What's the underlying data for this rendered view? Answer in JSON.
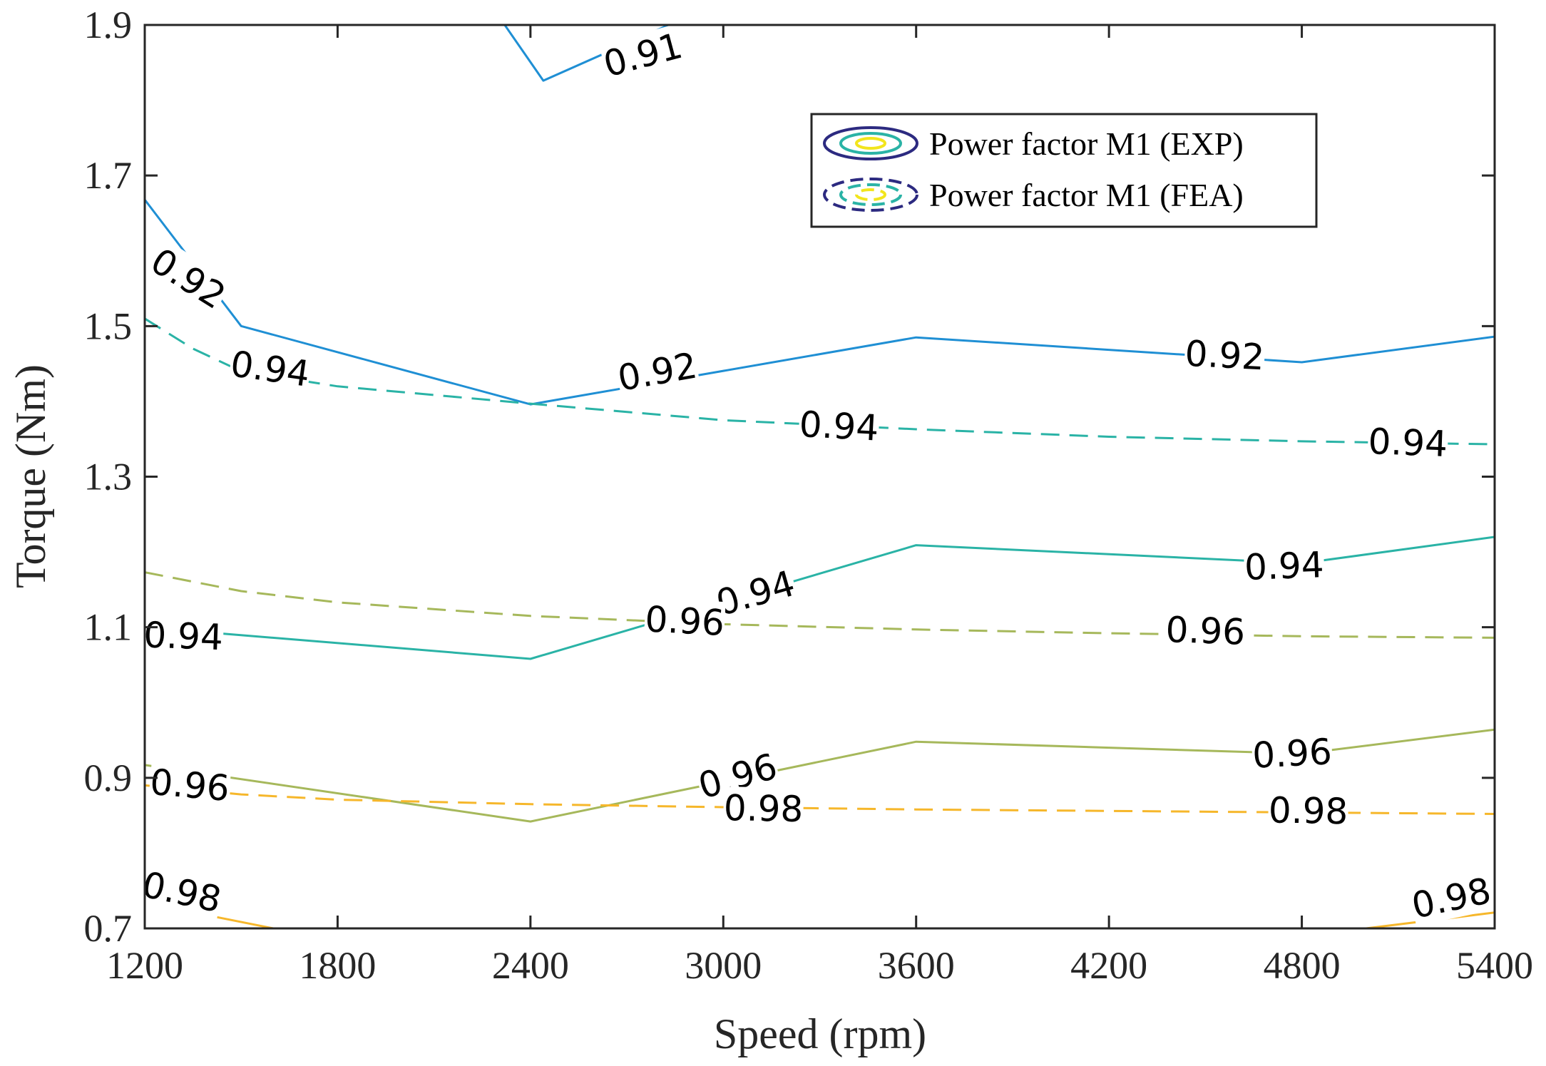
{
  "chart_data": {
    "type": "contour",
    "xlabel": "Speed (rpm)",
    "ylabel": "Torque (Nm)",
    "xlim": [
      1200,
      5400
    ],
    "ylim": [
      0.7,
      1.9
    ],
    "xticks": [
      "1200",
      "1800",
      "2400",
      "3000",
      "3600",
      "4200",
      "4800",
      "5400"
    ],
    "yticks": [
      "0.7",
      "0.9",
      "1.1",
      "1.3",
      "1.5",
      "1.7",
      "1.9"
    ],
    "grid": false,
    "legend": {
      "position": "top-right",
      "entries": [
        "Power factor M1 (EXP)",
        "Power factor M1 (FEA)"
      ]
    },
    "colors": {
      "0.91": "#1f8fd4",
      "0.92": "#1f8fd4",
      "0.94": "#2ab3a6",
      "0.96": "#a6b85b",
      "0.98": "#f6b72b",
      "legend_outer": "#2c2a80",
      "legend_mid": "#2ab3a6",
      "legend_inner": "#f2e51d"
    },
    "series": [
      {
        "name": "Power factor M1 (EXP)",
        "level": "0.91",
        "style": "solid",
        "x": [
          2320,
          2440,
          2830
        ],
        "y": [
          1.9,
          1.826,
          1.9
        ]
      },
      {
        "name": "Power factor M1 (EXP)",
        "level": "0.92",
        "style": "solid",
        "x": [
          1200,
          1500,
          2400,
          3600,
          4800,
          5400
        ],
        "y": [
          1.668,
          1.5,
          1.396,
          1.485,
          1.452,
          1.486
        ]
      },
      {
        "name": "Power factor M1 (EXP)",
        "level": "0.94",
        "style": "solid",
        "x": [
          1200,
          2400,
          3600,
          4800,
          5400
        ],
        "y": [
          1.1,
          1.058,
          1.209,
          1.185,
          1.22
        ]
      },
      {
        "name": "Power factor M1 (EXP)",
        "level": "0.96",
        "style": "solid",
        "x": [
          1200,
          2400,
          3600,
          4800,
          5400
        ],
        "y": [
          0.917,
          0.842,
          0.948,
          0.932,
          0.964
        ]
      },
      {
        "name": "Power factor M1 (EXP)",
        "level": "0.98",
        "style": "solid",
        "x": [
          1200,
          1600
        ],
        "y": [
          0.734,
          0.7
        ]
      },
      {
        "name": "Power factor M1 (EXP)",
        "level": "0.98",
        "style": "solid",
        "x": [
          5000,
          5400
        ],
        "y": [
          0.7,
          0.721
        ]
      },
      {
        "name": "Power factor M1 (FEA)",
        "level": "0.94",
        "style": "dashed",
        "x": [
          1200,
          1350,
          1500,
          1800,
          2400,
          3000,
          3600,
          4200,
          4800,
          5400
        ],
        "y": [
          1.51,
          1.47,
          1.44,
          1.42,
          1.397,
          1.375,
          1.363,
          1.353,
          1.347,
          1.343
        ]
      },
      {
        "name": "Power factor M1 (FEA)",
        "level": "0.96",
        "style": "dashed",
        "x": [
          1200,
          1500,
          1800,
          2400,
          3000,
          3600,
          4200,
          4800,
          5400
        ],
        "y": [
          1.173,
          1.148,
          1.133,
          1.115,
          1.104,
          1.097,
          1.092,
          1.088,
          1.086
        ]
      },
      {
        "name": "Power factor M1 (FEA)",
        "level": "0.98",
        "style": "dashed",
        "x": [
          1200,
          1500,
          1800,
          2400,
          3000,
          3600,
          4200,
          4800,
          5400
        ],
        "y": [
          0.89,
          0.878,
          0.871,
          0.865,
          0.861,
          0.858,
          0.856,
          0.854,
          0.852
        ]
      }
    ],
    "contour_labels": [
      {
        "text": "0.91",
        "x": 2750,
        "y": 1.86,
        "angle": -15
      },
      {
        "text": "0.92",
        "x": 1335,
        "y": 1.563,
        "angle": 32
      },
      {
        "text": "0.92",
        "x": 2795,
        "y": 1.439,
        "angle": -10
      },
      {
        "text": "0.92",
        "x": 4560,
        "y": 1.461,
        "angle": 3
      },
      {
        "text": "0.94",
        "x": 1590,
        "y": 1.443,
        "angle": 8
      },
      {
        "text": "0.94",
        "x": 3360,
        "y": 1.367,
        "angle": 3
      },
      {
        "text": "0.94",
        "x": 5130,
        "y": 1.345,
        "angle": 2
      },
      {
        "text": "0.94",
        "x": 1320,
        "y": 1.088,
        "angle": 2
      },
      {
        "text": "0.94",
        "x": 3100,
        "y": 1.145,
        "angle": -16
      },
      {
        "text": "0.94",
        "x": 4745,
        "y": 1.181,
        "angle": -2
      },
      {
        "text": "0.96",
        "x": 2880,
        "y": 1.108,
        "angle": 3
      },
      {
        "text": "0.96",
        "x": 4500,
        "y": 1.095,
        "angle": 2
      },
      {
        "text": "0.96",
        "x": 1340,
        "y": 0.89,
        "angle": 5
      },
      {
        "text": "0.96",
        "x": 3045,
        "y": 0.902,
        "angle": -16
      },
      {
        "text": "0.96",
        "x": 4770,
        "y": 0.932,
        "angle": -3
      },
      {
        "text": "0.98",
        "x": 3125,
        "y": 0.859,
        "angle": 1
      },
      {
        "text": "0.98",
        "x": 4820,
        "y": 0.856,
        "angle": 1
      },
      {
        "text": "0.98",
        "x": 1315,
        "y": 0.748,
        "angle": 12
      },
      {
        "text": "0.98",
        "x": 5265,
        "y": 0.74,
        "angle": -12
      }
    ]
  }
}
